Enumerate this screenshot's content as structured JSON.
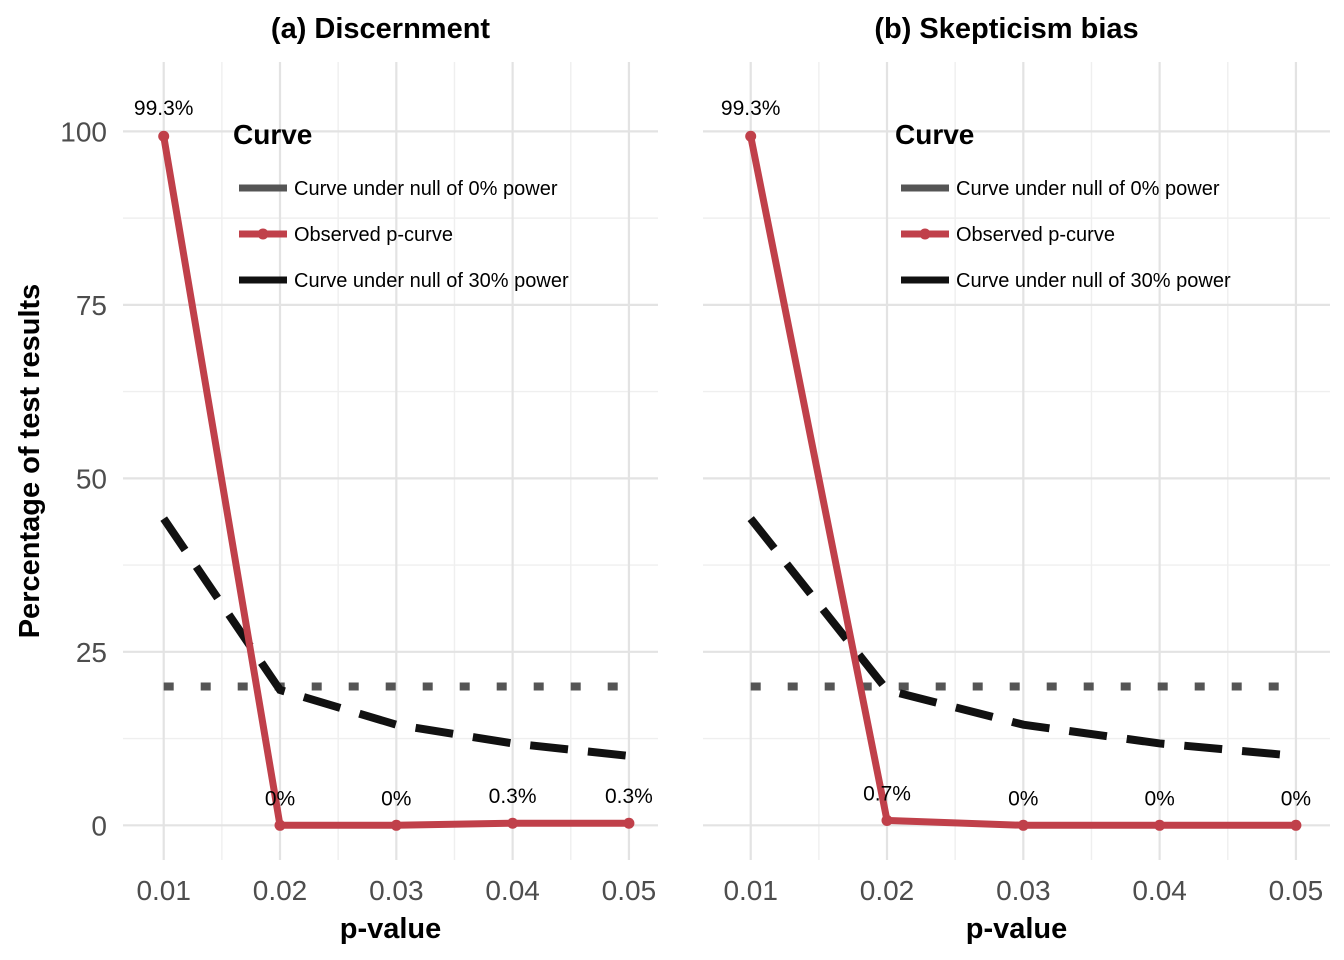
{
  "chart_data": [
    {
      "type": "line",
      "title": "(a) Discernment",
      "xlabel": "p-value",
      "ylabel": "Percentage of test results",
      "x": [
        0.01,
        0.02,
        0.03,
        0.04,
        0.05
      ],
      "x_tick_labels": [
        "0.01",
        "0.02",
        "0.03",
        "0.04",
        "0.05"
      ],
      "y_tick_labels": [
        "0",
        "25",
        "50",
        "75",
        "100"
      ],
      "y_ticks": [
        0,
        25,
        50,
        75,
        100
      ],
      "xlim": [
        0.0065,
        0.0525
      ],
      "ylim": [
        -5,
        110
      ],
      "grid": true,
      "legend": {
        "title": "Curve",
        "placement": "top-center",
        "entries": [
          "Curve under null of 0% power",
          "Observed p-curve",
          "Curve under null of 30% power"
        ]
      },
      "series": [
        {
          "name": "Curve under null of 0% power",
          "style": "dotted",
          "color": "#555555",
          "values": [
            20,
            20,
            20,
            20,
            20
          ]
        },
        {
          "name": "Observed p-curve",
          "style": "solid-points",
          "color": "#c0404a",
          "values": [
            99.3,
            0,
            0,
            0.3,
            0.3
          ],
          "labels": [
            "99.3%",
            "0%",
            "0%",
            "0.3%",
            "0.3%"
          ]
        },
        {
          "name": "Curve under null of 30% power",
          "style": "dashed",
          "color": "#111111",
          "values": [
            44.2,
            19.5,
            14.5,
            11.8,
            10.0
          ]
        }
      ]
    },
    {
      "type": "line",
      "title": "(b) Skepticism bias",
      "xlabel": "p-value",
      "ylabel": "",
      "x": [
        0.01,
        0.02,
        0.03,
        0.04,
        0.05
      ],
      "x_tick_labels": [
        "0.01",
        "0.02",
        "0.03",
        "0.04",
        "0.05"
      ],
      "y_tick_labels": [],
      "y_ticks": [
        0,
        25,
        50,
        75,
        100
      ],
      "xlim": [
        0.0065,
        0.0525
      ],
      "ylim": [
        -5,
        110
      ],
      "grid": true,
      "legend": {
        "title": "Curve",
        "placement": "top-center",
        "entries": [
          "Curve under null of 0% power",
          "Observed p-curve",
          "Curve under null of 30% power"
        ]
      },
      "series": [
        {
          "name": "Curve under null of 0% power",
          "style": "dotted",
          "color": "#555555",
          "values": [
            20,
            20,
            20,
            20,
            20
          ]
        },
        {
          "name": "Observed p-curve",
          "style": "solid-points",
          "color": "#c0404a",
          "values": [
            99.3,
            0.7,
            0,
            0,
            0
          ],
          "labels": [
            "99.3%",
            "0.7%",
            "0%",
            "0%",
            "0%"
          ]
        },
        {
          "name": "Curve under null of 30% power",
          "style": "dashed",
          "color": "#111111",
          "values": [
            44.2,
            19.5,
            14.5,
            11.8,
            10.0
          ]
        }
      ]
    }
  ]
}
